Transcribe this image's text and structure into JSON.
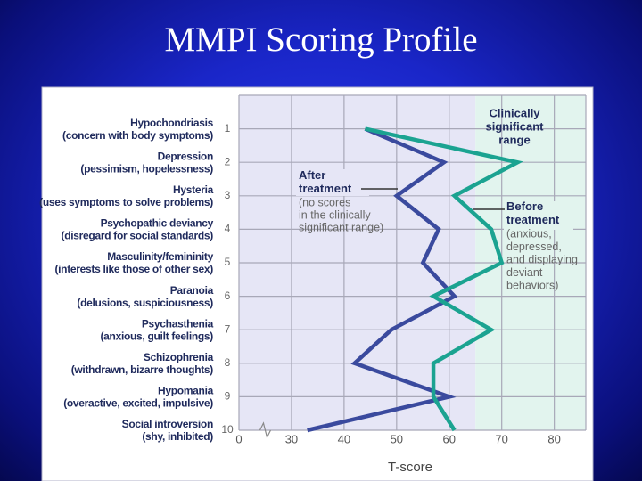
{
  "chart_data": {
    "type": "line",
    "title": "MMPI Scoring Profile",
    "categories": [
      "Hypochondriasis",
      "Depression",
      "Hysteria",
      "Psychopathic deviancy",
      "Masculinity/femininity",
      "Paranoia",
      "Psychasthenia",
      "Schizophrenia",
      "Hypomania",
      "Social introversion"
    ],
    "category_descriptions": [
      "(concern with body symptoms)",
      "(pessimism, hopelessness)",
      "(uses symptoms to solve problems)",
      "(disregard for social standards)",
      "(interests like those of other sex)",
      "(delusions, suspiciousness)",
      "(anxious, guilt feelings)",
      "(withdrawn, bizarre thoughts)",
      "(overactive, excited, impulsive)",
      "(shy, inhibited)"
    ],
    "yticks": [
      1,
      2,
      3,
      4,
      5,
      6,
      7,
      8,
      9,
      10
    ],
    "ylim": [
      0,
      10
    ],
    "xlabel": "T-score",
    "xlim": [
      0,
      86
    ],
    "x_break": [
      0,
      20
    ],
    "xticks": [
      0,
      30,
      40,
      50,
      60,
      70,
      80
    ],
    "significant_threshold": 65,
    "grid": true,
    "series": [
      {
        "name": "After treatment",
        "color": "#3a4a9e",
        "values": [
          44,
          59,
          50,
          58,
          55,
          61,
          49,
          42,
          60,
          33
        ]
      },
      {
        "name": "Before treatment",
        "color": "#1ba391",
        "values": [
          44,
          73,
          61,
          68,
          70,
          57,
          68,
          57,
          57,
          61
        ]
      }
    ],
    "annotations": {
      "significant_range": [
        "Clinically",
        "significant",
        "range"
      ],
      "after_note": [
        "(no scores",
        "in the clinically",
        "significant range)"
      ],
      "before_note": [
        "(anxious,",
        "depressed,",
        "and displaying",
        "deviant",
        "behaviors)"
      ]
    }
  }
}
